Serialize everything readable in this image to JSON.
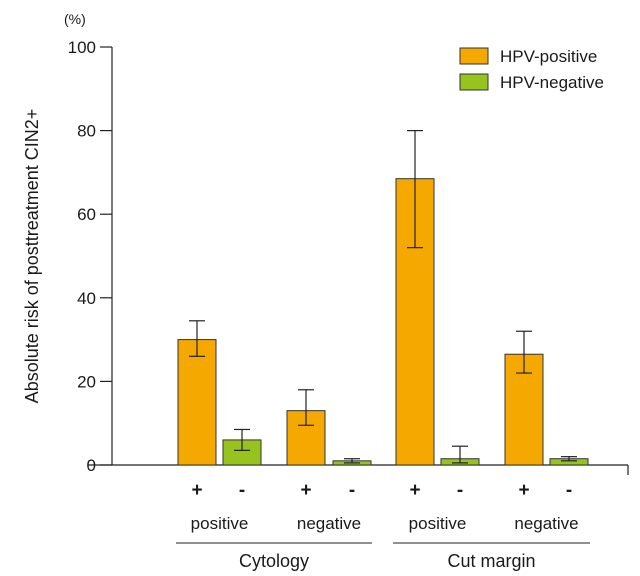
{
  "chart_data": {
    "type": "bar",
    "ylabel": "Absolute risk of posttreatment CIN2+",
    "yunit": "(%)",
    "ylim": [
      0,
      100
    ],
    "yticks": [
      0,
      20,
      40,
      60,
      80,
      100
    ],
    "legend_position": "top-right",
    "grid": false,
    "series": [
      {
        "name": "HPV-positive",
        "color": "#f5a800"
      },
      {
        "name": "HPV-negative",
        "color": "#96c31e"
      }
    ],
    "sections": [
      {
        "label": "Cytology",
        "groups": [
          {
            "label": "positive",
            "bars": [
              {
                "sign": "+",
                "series": 0,
                "value": 30,
                "err_low": 26,
                "err_high": 34.5
              },
              {
                "sign": "-",
                "series": 1,
                "value": 6,
                "err_low": 3.5,
                "err_high": 8.5
              }
            ]
          },
          {
            "label": "negative",
            "bars": [
              {
                "sign": "+",
                "series": 0,
                "value": 13,
                "err_low": 9.5,
                "err_high": 18
              },
              {
                "sign": "-",
                "series": 1,
                "value": 1,
                "err_low": 0.5,
                "err_high": 1.5
              }
            ]
          }
        ]
      },
      {
        "label": "Cut margin",
        "groups": [
          {
            "label": "positive",
            "bars": [
              {
                "sign": "+",
                "series": 0,
                "value": 68.5,
                "err_low": 52,
                "err_high": 80
              },
              {
                "sign": "-",
                "series": 1,
                "value": 1.5,
                "err_low": 0.5,
                "err_high": 4.5
              }
            ]
          },
          {
            "label": "negative",
            "bars": [
              {
                "sign": "+",
                "series": 0,
                "value": 26.5,
                "err_low": 22,
                "err_high": 32
              },
              {
                "sign": "-",
                "series": 1,
                "value": 1.5,
                "err_low": 1,
                "err_high": 2
              }
            ]
          }
        ]
      }
    ]
  }
}
